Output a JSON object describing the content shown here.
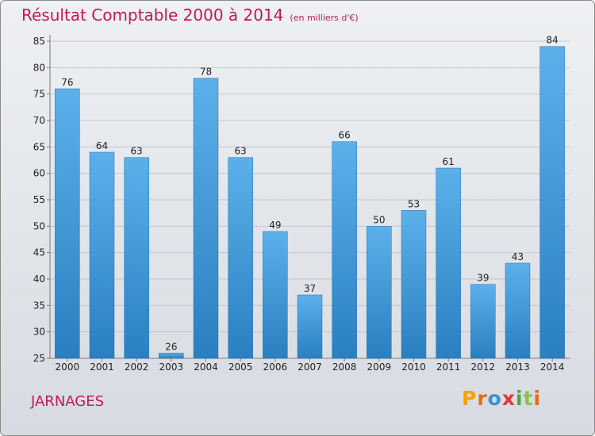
{
  "chart_data": {
    "type": "bar",
    "title": "Résultat Comptable 2000 à 2014",
    "subtitle": "(en milliers d'€)",
    "categories": [
      "2000",
      "2001",
      "2002",
      "2003",
      "2004",
      "2005",
      "2006",
      "2007",
      "2008",
      "2009",
      "2010",
      "2011",
      "2012",
      "2013",
      "2014"
    ],
    "values": [
      76,
      64,
      63,
      26,
      78,
      63,
      49,
      37,
      66,
      50,
      53,
      61,
      39,
      43,
      84
    ],
    "yticks": [
      25,
      30,
      35,
      40,
      45,
      50,
      55,
      60,
      65,
      70,
      75,
      80,
      85
    ],
    "ylim": [
      25,
      85
    ],
    "xlabel": "",
    "ylabel": "",
    "grid": true,
    "bar_color": "#3a95dc"
  },
  "footer": {
    "town": "JARNAGES",
    "logo_letters": [
      "P",
      "r",
      "o",
      "x",
      "i",
      "t",
      "i"
    ]
  }
}
